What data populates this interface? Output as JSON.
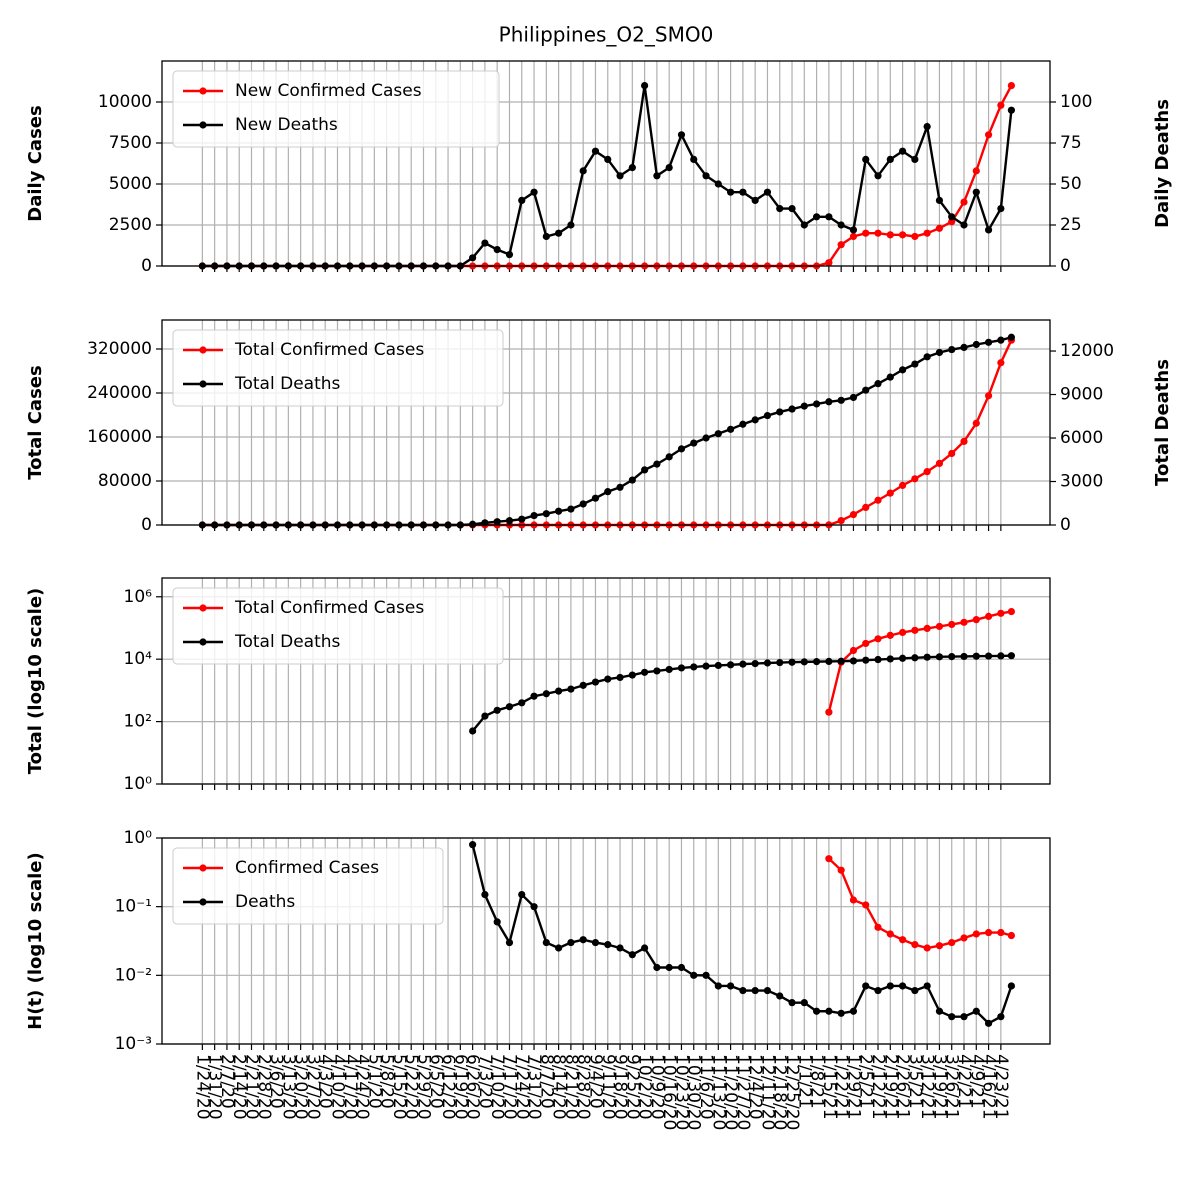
{
  "chart_data": [
    {
      "type": "line",
      "title": "Philippines_O2_SMO0",
      "ylabel": "Daily Cases",
      "y2label": "Daily Deaths",
      "log": false,
      "grid": true,
      "legend": "upper left",
      "xlim": [
        "1/1/20",
        "5/21/21"
      ],
      "ylim": [
        0,
        12500
      ],
      "yticks": [
        0,
        2500,
        5000,
        7500,
        10000
      ],
      "y2lim": [
        0,
        125
      ],
      "y2ticks": [
        0,
        25,
        50,
        75,
        100
      ],
      "x": [
        "1/24/20",
        "1/31/20",
        "2/7/20",
        "2/14/20",
        "2/21/20",
        "2/28/20",
        "3/6/20",
        "3/13/20",
        "3/20/20",
        "3/27/20",
        "4/3/20",
        "4/10/20",
        "4/17/20",
        "4/24/20",
        "5/1/20",
        "5/8/20",
        "5/15/20",
        "5/22/20",
        "5/29/20",
        "6/5/20",
        "6/12/20",
        "6/19/20",
        "6/26/20",
        "7/3/20",
        "7/10/20",
        "7/17/20",
        "7/24/20",
        "7/31/20",
        "8/7/20",
        "8/14/20",
        "8/21/20",
        "8/28/20",
        "9/4/20",
        "9/11/20",
        "9/18/20",
        "9/25/20",
        "10/2/20",
        "10/9/20",
        "10/16/20",
        "10/23/20",
        "10/30/20",
        "11/6/20",
        "11/13/20",
        "11/20/20",
        "11/27/20",
        "12/4/20",
        "12/11/20",
        "12/18/20",
        "12/25/20",
        "1/1/21",
        "1/8/21",
        "1/15/21",
        "1/22/21",
        "1/29/21",
        "2/5/21",
        "2/12/21",
        "2/19/21",
        "2/26/21",
        "3/5/21",
        "3/12/21",
        "3/19/21",
        "3/26/21",
        "4/2/21",
        "4/9/21",
        "4/16/21",
        "4/23/21",
        "4/29/21"
      ],
      "series": [
        {
          "name": "New Confirmed Cases",
          "color": "#ff0000",
          "values": [
            0,
            0,
            0,
            0,
            0,
            0,
            0,
            0,
            0,
            0,
            0,
            0,
            0,
            0,
            0,
            0,
            0,
            0,
            0,
            0,
            0,
            0,
            0,
            0,
            0,
            0,
            0,
            0,
            0,
            0,
            0,
            0,
            0,
            0,
            0,
            0,
            0,
            0,
            0,
            0,
            0,
            0,
            0,
            0,
            0,
            0,
            0,
            0,
            0,
            0,
            0,
            200,
            1300,
            1800,
            2000,
            2000,
            1900,
            1900,
            1800,
            2000,
            2300,
            2700,
            3900,
            5800,
            8000,
            9800,
            11000
          ]
        },
        {
          "name": "New Deaths",
          "color": "#000000",
          "axis": "y2",
          "values": [
            0,
            0,
            0,
            0,
            0,
            0,
            0,
            0,
            0,
            0,
            0,
            0,
            0,
            0,
            0,
            0,
            0,
            0,
            0,
            0,
            0,
            0,
            5,
            14,
            10,
            7,
            40,
            45,
            18,
            20,
            25,
            58,
            70,
            65,
            55,
            60,
            110,
            55,
            60,
            80,
            65,
            55,
            50,
            45,
            45,
            40,
            45,
            35,
            35,
            25,
            30,
            30,
            25,
            22,
            65,
            55,
            65,
            70,
            65,
            85,
            40,
            30,
            25,
            45,
            22,
            35,
            95
          ]
        }
      ]
    },
    {
      "type": "line",
      "ylabel": "Total Cases",
      "y2label": "Total Deaths",
      "log": false,
      "grid": true,
      "legend": "upper left",
      "xlim": [
        "1/1/20",
        "5/21/21"
      ],
      "ylim": [
        0,
        372700
      ],
      "yticks": [
        0,
        80000,
        160000,
        240000,
        320000
      ],
      "y2lim": [
        0,
        14140
      ],
      "y2ticks": [
        0,
        3000,
        6000,
        9000,
        12000
      ],
      "x": [
        "1/24/20",
        "1/31/20",
        "2/7/20",
        "2/14/20",
        "2/21/20",
        "2/28/20",
        "3/6/20",
        "3/13/20",
        "3/20/20",
        "3/27/20",
        "4/3/20",
        "4/10/20",
        "4/17/20",
        "4/24/20",
        "5/1/20",
        "5/8/20",
        "5/15/20",
        "5/22/20",
        "5/29/20",
        "6/5/20",
        "6/12/20",
        "6/19/20",
        "6/26/20",
        "7/3/20",
        "7/10/20",
        "7/17/20",
        "7/24/20",
        "7/31/20",
        "8/7/20",
        "8/14/20",
        "8/21/20",
        "8/28/20",
        "9/4/20",
        "9/11/20",
        "9/18/20",
        "9/25/20",
        "10/2/20",
        "10/9/20",
        "10/16/20",
        "10/23/20",
        "10/30/20",
        "11/6/20",
        "11/13/20",
        "11/20/20",
        "11/27/20",
        "12/4/20",
        "12/11/20",
        "12/18/20",
        "12/25/20",
        "1/1/21",
        "1/8/21",
        "1/15/21",
        "1/22/21",
        "1/29/21",
        "2/5/21",
        "2/12/21",
        "2/19/21",
        "2/26/21",
        "3/5/21",
        "3/12/21",
        "3/19/21",
        "3/26/21",
        "4/2/21",
        "4/9/21",
        "4/16/21",
        "4/23/21",
        "4/29/21"
      ],
      "series": [
        {
          "name": "Total Confirmed Cases",
          "color": "#ff0000",
          "values": [
            0,
            0,
            0,
            0,
            0,
            0,
            0,
            0,
            0,
            0,
            0,
            0,
            0,
            0,
            0,
            0,
            0,
            0,
            0,
            0,
            0,
            0,
            0,
            0,
            0,
            0,
            0,
            0,
            0,
            0,
            0,
            0,
            0,
            0,
            0,
            0,
            0,
            0,
            0,
            0,
            0,
            0,
            0,
            0,
            0,
            0,
            0,
            0,
            0,
            0,
            0,
            200,
            8000,
            19000,
            32000,
            45000,
            58000,
            72000,
            84000,
            97000,
            112000,
            130000,
            152000,
            185000,
            235000,
            295000,
            336000
          ]
        },
        {
          "name": "Total Deaths",
          "color": "#000000",
          "axis": "y2",
          "values": [
            0,
            0,
            0,
            0,
            0,
            0,
            0,
            0,
            0,
            0,
            0,
            0,
            0,
            0,
            0,
            0,
            0,
            0,
            0,
            0,
            0,
            0,
            50,
            150,
            230,
            300,
            400,
            650,
            780,
            950,
            1100,
            1450,
            1850,
            2300,
            2600,
            3100,
            3800,
            4200,
            4700,
            5250,
            5650,
            6000,
            6300,
            6600,
            6950,
            7250,
            7550,
            7800,
            8000,
            8200,
            8350,
            8500,
            8600,
            8800,
            9300,
            9750,
            10200,
            10700,
            11100,
            11600,
            11900,
            12100,
            12250,
            12450,
            12600,
            12750,
            12950
          ]
        }
      ]
    },
    {
      "type": "line",
      "ylabel": "Total (log10 scale)",
      "log": true,
      "grid": true,
      "legend": "upper left",
      "xlim": [
        "1/1/20",
        "5/21/21"
      ],
      "ylim": [
        1,
        4000000
      ],
      "yticks": [
        {
          "value": 1,
          "label": "10⁰"
        },
        {
          "value": 100,
          "label": "10²"
        },
        {
          "value": 10000,
          "label": "10⁴"
        },
        {
          "value": 1000000,
          "label": "10⁶"
        }
      ],
      "x": [
        "1/24/20",
        "1/31/20",
        "2/7/20",
        "2/14/20",
        "2/21/20",
        "2/28/20",
        "3/6/20",
        "3/13/20",
        "3/20/20",
        "3/27/20",
        "4/3/20",
        "4/10/20",
        "4/17/20",
        "4/24/20",
        "5/1/20",
        "5/8/20",
        "5/15/20",
        "5/22/20",
        "5/29/20",
        "6/5/20",
        "6/12/20",
        "6/19/20",
        "6/26/20",
        "7/3/20",
        "7/10/20",
        "7/17/20",
        "7/24/20",
        "7/31/20",
        "8/7/20",
        "8/14/20",
        "8/21/20",
        "8/28/20",
        "9/4/20",
        "9/11/20",
        "9/18/20",
        "9/25/20",
        "10/2/20",
        "10/9/20",
        "10/16/20",
        "10/23/20",
        "10/30/20",
        "11/6/20",
        "11/13/20",
        "11/20/20",
        "11/27/20",
        "12/4/20",
        "12/11/20",
        "12/18/20",
        "12/25/20",
        "1/1/21",
        "1/8/21",
        "1/15/21",
        "1/22/21",
        "1/29/21",
        "2/5/21",
        "2/12/21",
        "2/19/21",
        "2/26/21",
        "3/5/21",
        "3/12/21",
        "3/19/21",
        "3/26/21",
        "4/2/21",
        "4/9/21",
        "4/16/21",
        "4/23/21",
        "4/29/21"
      ],
      "series": [
        {
          "name": "Total Confirmed Cases",
          "color": "#ff0000",
          "values": [
            null,
            null,
            null,
            null,
            null,
            null,
            null,
            null,
            null,
            null,
            null,
            null,
            null,
            null,
            null,
            null,
            null,
            null,
            null,
            null,
            null,
            null,
            null,
            null,
            null,
            null,
            null,
            null,
            null,
            null,
            null,
            null,
            null,
            null,
            null,
            null,
            null,
            null,
            null,
            null,
            null,
            null,
            null,
            null,
            null,
            null,
            null,
            null,
            null,
            null,
            null,
            200,
            8000,
            19000,
            32000,
            45000,
            58000,
            72000,
            84000,
            97000,
            112000,
            130000,
            152000,
            185000,
            235000,
            295000,
            336000
          ]
        },
        {
          "name": "Total Deaths",
          "color": "#000000",
          "values": [
            null,
            null,
            null,
            null,
            null,
            null,
            null,
            null,
            null,
            null,
            null,
            null,
            null,
            null,
            null,
            null,
            null,
            null,
            null,
            null,
            null,
            null,
            50,
            150,
            230,
            300,
            400,
            650,
            780,
            950,
            1100,
            1450,
            1850,
            2300,
            2600,
            3100,
            3800,
            4200,
            4700,
            5250,
            5650,
            6000,
            6300,
            6600,
            6950,
            7250,
            7550,
            7800,
            8000,
            8200,
            8350,
            8500,
            8600,
            8800,
            9300,
            9750,
            10200,
            10700,
            11100,
            11600,
            11900,
            12100,
            12250,
            12450,
            12600,
            12750,
            12950
          ]
        }
      ]
    },
    {
      "type": "line",
      "ylabel": "H(t) (log10 scale)",
      "log": true,
      "grid": true,
      "legend": "upper left",
      "xlim": [
        "1/1/20",
        "5/21/21"
      ],
      "ylim": [
        0.001,
        1
      ],
      "yticks": [
        {
          "value": 0.001,
          "label": "10⁻³"
        },
        {
          "value": 0.01,
          "label": "10⁻²"
        },
        {
          "value": 0.1,
          "label": "10⁻¹"
        },
        {
          "value": 1,
          "label": "10⁰"
        }
      ],
      "xticks": [
        "1/24/20",
        "1/31/20",
        "2/7/20",
        "2/14/20",
        "2/21/20",
        "2/28/20",
        "3/6/20",
        "3/13/20",
        "3/20/20",
        "3/27/20",
        "4/3/20",
        "4/10/20",
        "4/17/20",
        "4/24/20",
        "5/1/20",
        "5/8/20",
        "5/15/20",
        "5/22/20",
        "5/29/20",
        "6/5/20",
        "6/12/20",
        "6/19/20",
        "6/26/20",
        "7/3/20",
        "7/10/20",
        "7/17/20",
        "7/24/20",
        "7/31/20",
        "8/7/20",
        "8/14/20",
        "8/21/20",
        "8/28/20",
        "9/4/20",
        "9/11/20",
        "9/18/20",
        "9/25/20",
        "10/2/20",
        "10/9/20",
        "10/16/20",
        "10/23/20",
        "10/30/20",
        "11/6/20",
        "11/13/20",
        "11/20/20",
        "11/27/20",
        "12/4/20",
        "12/11/20",
        "12/18/20",
        "12/25/20",
        "1/1/21",
        "1/8/21",
        "1/15/21",
        "1/22/21",
        "1/29/21",
        "2/5/21",
        "2/12/21",
        "2/19/21",
        "2/26/21",
        "3/5/21",
        "3/12/21",
        "3/19/21",
        "3/26/21",
        "4/2/21",
        "4/9/21",
        "4/16/21",
        "4/23/21"
      ],
      "x": [
        "1/24/20",
        "1/31/20",
        "2/7/20",
        "2/14/20",
        "2/21/20",
        "2/28/20",
        "3/6/20",
        "3/13/20",
        "3/20/20",
        "3/27/20",
        "4/3/20",
        "4/10/20",
        "4/17/20",
        "4/24/20",
        "5/1/20",
        "5/8/20",
        "5/15/20",
        "5/22/20",
        "5/29/20",
        "6/5/20",
        "6/12/20",
        "6/19/20",
        "6/26/20",
        "7/3/20",
        "7/10/20",
        "7/17/20",
        "7/24/20",
        "7/31/20",
        "8/7/20",
        "8/14/20",
        "8/21/20",
        "8/28/20",
        "9/4/20",
        "9/11/20",
        "9/18/20",
        "9/25/20",
        "10/2/20",
        "10/9/20",
        "10/16/20",
        "10/23/20",
        "10/30/20",
        "11/6/20",
        "11/13/20",
        "11/20/20",
        "11/27/20",
        "12/4/20",
        "12/11/20",
        "12/18/20",
        "12/25/20",
        "1/1/21",
        "1/8/21",
        "1/15/21",
        "1/22/21",
        "1/29/21",
        "2/5/21",
        "2/12/21",
        "2/19/21",
        "2/26/21",
        "3/5/21",
        "3/12/21",
        "3/19/21",
        "3/26/21",
        "4/2/21",
        "4/9/21",
        "4/16/21",
        "4/23/21",
        "4/29/21"
      ],
      "series": [
        {
          "name": "Confirmed Cases",
          "color": "#ff0000",
          "values": [
            null,
            null,
            null,
            null,
            null,
            null,
            null,
            null,
            null,
            null,
            null,
            null,
            null,
            null,
            null,
            null,
            null,
            null,
            null,
            null,
            null,
            null,
            null,
            null,
            null,
            null,
            null,
            null,
            null,
            null,
            null,
            null,
            null,
            null,
            null,
            null,
            null,
            null,
            null,
            null,
            null,
            null,
            null,
            null,
            null,
            null,
            null,
            null,
            null,
            null,
            null,
            0.5,
            0.34,
            0.125,
            0.106,
            0.05,
            0.04,
            0.033,
            0.028,
            0.025,
            0.027,
            0.03,
            0.035,
            0.04,
            0.042,
            0.042,
            0.038
          ]
        },
        {
          "name": "Deaths",
          "color": "#000000",
          "values": [
            null,
            null,
            null,
            null,
            null,
            null,
            null,
            null,
            null,
            null,
            null,
            null,
            null,
            null,
            null,
            null,
            null,
            null,
            null,
            null,
            null,
            null,
            0.8,
            0.15,
            0.06,
            0.03,
            0.15,
            0.1,
            0.03,
            0.025,
            0.03,
            0.033,
            0.03,
            0.028,
            0.025,
            0.02,
            0.025,
            0.013,
            0.013,
            0.013,
            0.01,
            0.01,
            0.007,
            0.007,
            0.006,
            0.006,
            0.006,
            0.005,
            0.004,
            0.004,
            0.003,
            0.003,
            0.0028,
            0.003,
            0.007,
            0.006,
            0.007,
            0.007,
            0.006,
            0.007,
            0.003,
            0.0025,
            0.0025,
            0.003,
            0.002,
            0.0025,
            0.007
          ]
        }
      ]
    }
  ]
}
